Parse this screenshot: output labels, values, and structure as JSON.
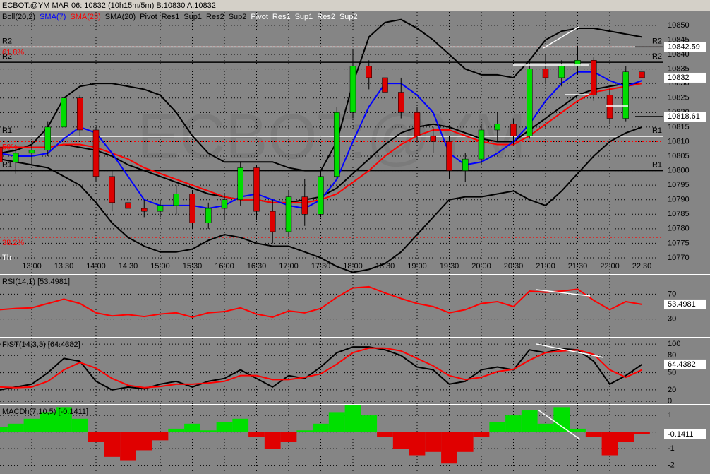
{
  "header": {
    "title": "ECBOT:@YM   MAR 06: 10832 (10h15m/5m)  B:10830  A:10832",
    "watermark": "ECBOT:@YM",
    "legend": [
      {
        "text": "Boll(20,2)",
        "color": "#000000"
      },
      {
        "text": "SMA(7)",
        "color": "#0000ff"
      },
      {
        "text": "SMA(23)",
        "color": "#ff0000"
      },
      {
        "text": "SMA(20)",
        "color": "#000000"
      },
      {
        "text": "Pivot",
        "color": "#000000"
      },
      {
        "text": "Res1",
        "color": "#000000"
      },
      {
        "text": "Sup1",
        "color": "#000000"
      },
      {
        "text": "Res2",
        "color": "#000000"
      },
      {
        "text": "Sup2",
        "color": "#000000"
      },
      {
        "text": "Pivot",
        "color": "#ffffff"
      },
      {
        "text": "Res1",
        "color": "#ffffff"
      },
      {
        "text": "Sup1",
        "color": "#ffffff"
      },
      {
        "text": "Res2",
        "color": "#ffffff"
      },
      {
        "text": "Sup2",
        "color": "#ffffff"
      }
    ]
  },
  "chart_data": [
    {
      "type": "candlestick",
      "note": "Th",
      "categories": [
        null,
        null,
        "13:00",
        null,
        "13:30",
        null,
        "14:00",
        null,
        "14:30",
        null,
        "15:00",
        null,
        "15:30",
        null,
        "16:00",
        null,
        "16:30",
        null,
        "17:00",
        null,
        "17:30",
        null,
        "18:00",
        null,
        "18:30",
        null,
        "19:00",
        null,
        "19:30",
        null,
        "20:00",
        null,
        "20:30",
        null,
        "21:00",
        null,
        "21:30",
        null,
        "22:00",
        null,
        "22:30"
      ],
      "open": [
        10808,
        10803,
        10806,
        10807,
        10815,
        10825,
        10814,
        10798,
        10789,
        10787,
        10786,
        10788,
        10792,
        10782,
        10787,
        10790,
        10801,
        10786,
        10779,
        10791,
        10785,
        10798,
        10820,
        10836,
        10832,
        10827,
        10820,
        10812,
        10810,
        10800,
        10804,
        10814,
        10816,
        10812,
        10835,
        10832,
        10836,
        10838,
        10826,
        10818,
        10834
      ],
      "high": [
        10810,
        10808,
        10809,
        10817,
        10828,
        10826,
        10815,
        10800,
        10793,
        10790,
        10790,
        10795,
        10793,
        10789,
        10792,
        10803,
        10802,
        10790,
        10793,
        10797,
        10800,
        10822,
        10842,
        10838,
        10834,
        10832,
        10822,
        10815,
        10812,
        10806,
        10816,
        10820,
        10818,
        10838,
        10840,
        10838,
        10843,
        10839,
        10828,
        10836,
        10837
      ],
      "low": [
        10800,
        10799,
        10802,
        10805,
        10812,
        10812,
        10796,
        10786,
        10785,
        10784,
        10784,
        10785,
        10780,
        10780,
        10783,
        10788,
        10783,
        10775,
        10777,
        10781,
        10784,
        10797,
        10818,
        10828,
        10825,
        10818,
        10810,
        10806,
        10797,
        10796,
        10802,
        10810,
        10809,
        10811,
        10830,
        10829,
        10833,
        10824,
        10816,
        10817,
        10830
      ],
      "close": [
        10803,
        10806,
        10807,
        10815,
        10825,
        10814,
        10798,
        10789,
        10787,
        10786,
        10788,
        10792,
        10782,
        10787,
        10790,
        10801,
        10786,
        10779,
        10791,
        10785,
        10798,
        10820,
        10836,
        10832,
        10827,
        10820,
        10812,
        10810,
        10800,
        10804,
        10814,
        10816,
        10812,
        10835,
        10832,
        10836,
        10838,
        10826,
        10818,
        10834,
        10832
      ],
      "up_color": "#00dd00",
      "down_color": "#dd0000",
      "series": [
        {
          "color": "#000000",
          "values": [
            10806,
            10807,
            10809,
            10815,
            10825,
            10829,
            10830,
            10830,
            10829,
            10828,
            10826,
            10820,
            10812,
            10806,
            10803,
            10803,
            10803,
            10803,
            10801,
            10800,
            10800,
            10810,
            10830,
            10846,
            10851,
            10852,
            10849,
            10845,
            10840,
            10835,
            10833,
            10833,
            10832,
            10838,
            10845,
            10848,
            10849,
            10849,
            10848,
            10847,
            10846
          ]
        },
        {
          "color": "#000000",
          "values": [
            10804,
            10803,
            10802,
            10801,
            10798,
            10795,
            10789,
            10782,
            10777,
            10774,
            10772,
            10772,
            10773,
            10776,
            10778,
            10777,
            10775,
            10774,
            10774,
            10772,
            10770,
            10767,
            10765,
            10766,
            10768,
            10772,
            10778,
            10784,
            10790,
            10791,
            10791,
            10792,
            10793,
            10790,
            10788,
            10793,
            10799,
            10805,
            10810,
            10813,
            10815
          ]
        },
        {
          "color": "#000000",
          "values": [
            10808,
            10808,
            10808,
            10808,
            10809,
            10808,
            10807,
            10805,
            10802,
            10800,
            10798,
            10796,
            10794,
            10792,
            10791,
            10790,
            10790,
            10789,
            10789,
            10790,
            10791,
            10794,
            10799,
            10804,
            10809,
            10813,
            10815,
            10816,
            10815,
            10813,
            10811,
            10810,
            10810,
            10814,
            10818,
            10822,
            10826,
            10828,
            10829,
            10830,
            10830
          ]
        },
        {
          "color": "#ff0000",
          "values": [
            10808,
            10808,
            10808,
            10808,
            10809,
            10809,
            10808,
            10806,
            10804,
            10801,
            10799,
            10797,
            10795,
            10793,
            10791,
            10790,
            10790,
            10789,
            10789,
            10789,
            10790,
            10792,
            10796,
            10800,
            10805,
            10809,
            10812,
            10814,
            10814,
            10812,
            10810,
            10809,
            10809,
            10812,
            10816,
            10820,
            10824,
            10827,
            10828,
            10829,
            10830
          ]
        },
        {
          "color": "#0000ff",
          "values": [
            10806,
            10805,
            10805,
            10806,
            10811,
            10815,
            10813,
            10806,
            10798,
            10790,
            10788,
            10788,
            10788,
            10787,
            10788,
            10791,
            10792,
            10790,
            10788,
            10787,
            10790,
            10797,
            10810,
            10822,
            10830,
            10830,
            10826,
            10820,
            10806,
            10802,
            10803,
            10806,
            10810,
            10816,
            10824,
            10830,
            10834,
            10834,
            10831,
            10829,
            10831
          ]
        }
      ],
      "levels": [
        {
          "label": "R2",
          "value": 10842.59,
          "color": "#ffffff"
        },
        {
          "label": "R2",
          "value": 10837.3,
          "color": "#000000"
        },
        {
          "label": "R1",
          "value": 10811.8,
          "color": "#ffffff"
        },
        {
          "label": "R1",
          "value": 10800,
          "color": "#000000"
        }
      ],
      "fib": [
        {
          "label": "61.8%",
          "value": 10842.59
        },
        {
          "label": "50%",
          "value": 10810
        },
        {
          "label": "38.2%",
          "value": 10777
        }
      ],
      "fib_color": "#ff0000",
      "price_boxes": [
        10842.59,
        10818.61
      ],
      "ylim": [
        10764.4,
        10854.6
      ],
      "yticks": [
        10770,
        10775,
        10780,
        10785,
        10790,
        10795,
        10800,
        10805,
        10810,
        10815,
        10820,
        10825,
        10830,
        10835,
        10840,
        10845,
        10850
      ],
      "grid": true
    },
    {
      "type": "line",
      "title": "RSI(14,1)  [53.4981]",
      "series": [
        {
          "color": "#ff0000",
          "values": [
            45,
            47,
            48,
            55,
            62,
            55,
            40,
            35,
            37,
            34,
            38,
            40,
            33,
            40,
            42,
            48,
            38,
            33,
            43,
            40,
            47,
            65,
            80,
            82,
            72,
            63,
            55,
            50,
            40,
            45,
            55,
            58,
            50,
            75,
            73,
            75,
            78,
            60,
            45,
            58,
            53.4981
          ]
        }
      ],
      "ylim": [
        0,
        100
      ],
      "yticks": [
        30,
        70
      ],
      "grid": true
    },
    {
      "type": "line",
      "title": "FIST(14,3,3)  [64.4382]",
      "series": [
        {
          "color": "#000000",
          "values": [
            20,
            25,
            30,
            50,
            75,
            70,
            35,
            20,
            25,
            22,
            30,
            35,
            25,
            35,
            40,
            55,
            40,
            25,
            45,
            40,
            60,
            85,
            95,
            95,
            90,
            80,
            60,
            55,
            30,
            35,
            55,
            60,
            55,
            90,
            85,
            92,
            90,
            70,
            30,
            45,
            64.4382
          ]
        },
        {
          "color": "#ff0000",
          "values": [
            25,
            24,
            25,
            35,
            55,
            68,
            58,
            40,
            28,
            24,
            26,
            30,
            30,
            32,
            35,
            45,
            45,
            38,
            38,
            42,
            48,
            65,
            85,
            93,
            93,
            88,
            75,
            62,
            45,
            38,
            42,
            52,
            56,
            72,
            85,
            88,
            90,
            82,
            55,
            42,
            55
          ]
        }
      ],
      "ylim": [
        -6,
        110
      ],
      "yticks": [
        0,
        20,
        50,
        80,
        100
      ],
      "grid": true
    },
    {
      "type": "bar",
      "title": "MACDh(7,10,5)  [-0.1411]",
      "positive_color": "#00e000",
      "negative_color": "#e00000",
      "values": [
        0.3,
        0.5,
        0.8,
        1.2,
        1.5,
        0.8,
        -0.6,
        -1.5,
        -1.7,
        -1.1,
        -0.5,
        0.2,
        0.5,
        0.1,
        0.6,
        0.8,
        -0.3,
        -1.0,
        -0.6,
        0.1,
        0.5,
        1.2,
        1.6,
        1.0,
        -0.3,
        -1.0,
        -1.4,
        -1.2,
        -1.9,
        -1.2,
        -0.3,
        0.6,
        1.0,
        1.3,
        0.5,
        1.5,
        0.2,
        -0.3,
        -1.4,
        -0.6,
        -0.1411
      ],
      "ylim": [
        -2.4,
        1.6
      ],
      "yticks": [
        -2,
        -1,
        0,
        1
      ],
      "grid": true
    }
  ]
}
